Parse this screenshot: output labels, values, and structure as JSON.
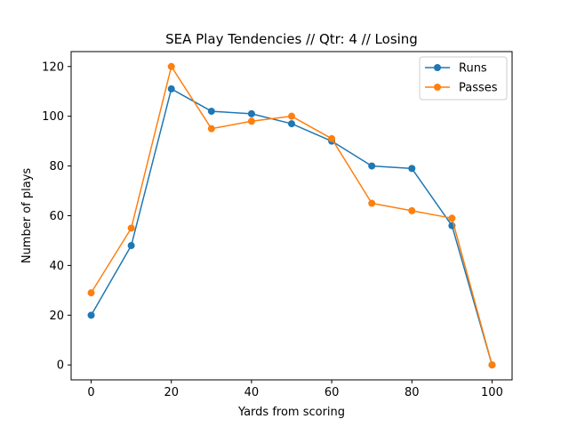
{
  "chart_data": {
    "type": "line",
    "title": "SEA Play Tendencies // Qtr: 4 // Losing",
    "xlabel": "Yards from scoring",
    "ylabel": "Number of plays",
    "xlim": [
      -5,
      105
    ],
    "ylim": [
      -6,
      126
    ],
    "xticks": [
      0,
      20,
      40,
      60,
      80,
      100
    ],
    "yticks": [
      0,
      20,
      40,
      60,
      80,
      100,
      120
    ],
    "x": [
      0,
      10,
      20,
      30,
      40,
      50,
      60,
      70,
      80,
      90,
      100
    ],
    "series": [
      {
        "name": "Runs",
        "color": "#1f77b4",
        "values": [
          20,
          48,
          111,
          102,
          101,
          97,
          90,
          80,
          79,
          56,
          0
        ]
      },
      {
        "name": "Passes",
        "color": "#ff7f0e",
        "values": [
          29,
          55,
          120,
          95,
          98,
          100,
          91,
          65,
          62,
          59,
          0
        ]
      }
    ],
    "grid": false,
    "legend": "top-right"
  }
}
